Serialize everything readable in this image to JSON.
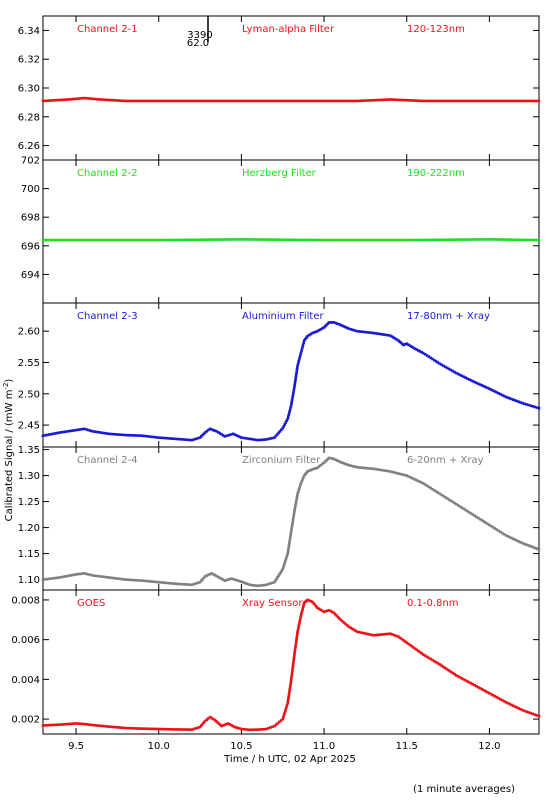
{
  "figure": {
    "ylabel": "Calibrated Signal / (mW m",
    "ylabel_sup": "-2",
    "ylabel_tail": ")",
    "xlabel": "Time / h UTC, 02 Apr 2025",
    "footnote": "(1 minute averages)",
    "marker_labels": [
      "3390",
      "62.0"
    ]
  },
  "chart_data": [
    {
      "type": "scatter",
      "channel": "Channel 2-1",
      "filter": "Lyman-alpha Filter",
      "band": "120-123nm",
      "color": "#e8141a",
      "ylim": [
        6.25,
        6.35
      ],
      "yticks": [
        6.26,
        6.28,
        6.3,
        6.32,
        6.34
      ],
      "ytick_labels": [
        "6.26",
        "6.28",
        "6.30",
        "6.32",
        "6.34"
      ],
      "x": [
        9.3,
        9.45,
        9.55,
        9.65,
        9.8,
        10.0,
        10.5,
        11.0,
        11.2,
        11.4,
        11.6,
        12.0,
        12.3
      ],
      "y": [
        6.291,
        6.292,
        6.293,
        6.292,
        6.291,
        6.291,
        6.291,
        6.291,
        6.291,
        6.292,
        6.291,
        6.291,
        6.291
      ]
    },
    {
      "type": "scatter",
      "channel": "Channel 2-2",
      "filter": "Herzberg Filter",
      "band": "190-222nm",
      "color": "#22dd22",
      "ylim": [
        692.0,
        702.0
      ],
      "yticks": [
        694,
        696,
        698,
        700,
        702
      ],
      "ytick_labels": [
        "694",
        "696",
        "698",
        "700",
        "702"
      ],
      "x": [
        9.3,
        9.6,
        10.0,
        10.5,
        11.0,
        11.5,
        12.0,
        12.3
      ],
      "y": [
        696.4,
        696.4,
        696.4,
        696.45,
        696.4,
        696.4,
        696.45,
        696.4
      ]
    },
    {
      "type": "scatter",
      "channel": "Channel 2-3",
      "filter": "Aluminium Filter",
      "band": "17-80nm + Xray",
      "color": "#1a1ad4",
      "ylim": [
        2.415,
        2.645
      ],
      "yticks": [
        2.45,
        2.5,
        2.55,
        2.6
      ],
      "ytick_labels": [
        "2.45",
        "2.50",
        "2.55",
        "2.60"
      ],
      "x": [
        9.3,
        9.4,
        9.5,
        9.55,
        9.6,
        9.7,
        9.8,
        9.9,
        10.0,
        10.1,
        10.2,
        10.25,
        10.28,
        10.31,
        10.35,
        10.4,
        10.45,
        10.5,
        10.55,
        10.6,
        10.65,
        10.7,
        10.75,
        10.78,
        10.8,
        10.82,
        10.84,
        10.86,
        10.88,
        10.9,
        10.93,
        10.96,
        11.0,
        11.03,
        11.06,
        11.1,
        11.15,
        11.2,
        11.3,
        11.4,
        11.45,
        11.48,
        11.5,
        11.55,
        11.6,
        11.7,
        11.8,
        11.9,
        12.0,
        12.1,
        12.2,
        12.3
      ],
      "y": [
        2.433,
        2.438,
        2.442,
        2.444,
        2.44,
        2.436,
        2.434,
        2.433,
        2.43,
        2.428,
        2.426,
        2.43,
        2.438,
        2.444,
        2.44,
        2.432,
        2.436,
        2.43,
        2.428,
        2.426,
        2.427,
        2.43,
        2.445,
        2.46,
        2.48,
        2.51,
        2.545,
        2.565,
        2.585,
        2.592,
        2.597,
        2.6,
        2.606,
        2.614,
        2.614,
        2.61,
        2.604,
        2.6,
        2.597,
        2.593,
        2.585,
        2.578,
        2.58,
        2.572,
        2.565,
        2.548,
        2.533,
        2.52,
        2.508,
        2.495,
        2.485,
        2.477
      ]
    },
    {
      "type": "scatter",
      "channel": "Channel 2-4",
      "filter": "Zirconium Filter",
      "band": "6-20nm + Xray",
      "color": "#808080",
      "ylim": [
        1.08,
        1.355
      ],
      "yticks": [
        1.1,
        1.15,
        1.2,
        1.25,
        1.3,
        1.35
      ],
      "ytick_labels": [
        "1.10",
        "1.15",
        "1.20",
        "1.25",
        "1.30",
        "1.35"
      ],
      "x": [
        9.3,
        9.4,
        9.5,
        9.55,
        9.6,
        9.7,
        9.8,
        9.9,
        10.0,
        10.1,
        10.2,
        10.25,
        10.28,
        10.32,
        10.36,
        10.4,
        10.44,
        10.5,
        10.55,
        10.6,
        10.65,
        10.7,
        10.75,
        10.78,
        10.8,
        10.82,
        10.84,
        10.86,
        10.88,
        10.9,
        10.93,
        10.96,
        11.0,
        11.03,
        11.06,
        11.1,
        11.15,
        11.2,
        11.3,
        11.4,
        11.5,
        11.6,
        11.7,
        11.8,
        11.9,
        12.0,
        12.1,
        12.2,
        12.3
      ],
      "y": [
        1.1,
        1.104,
        1.11,
        1.112,
        1.108,
        1.104,
        1.1,
        1.098,
        1.095,
        1.092,
        1.09,
        1.095,
        1.106,
        1.112,
        1.105,
        1.098,
        1.102,
        1.096,
        1.09,
        1.088,
        1.09,
        1.095,
        1.12,
        1.15,
        1.19,
        1.23,
        1.265,
        1.285,
        1.3,
        1.308,
        1.312,
        1.315,
        1.325,
        1.334,
        1.332,
        1.326,
        1.32,
        1.316,
        1.313,
        1.308,
        1.3,
        1.285,
        1.265,
        1.245,
        1.225,
        1.205,
        1.185,
        1.17,
        1.158
      ]
    },
    {
      "type": "scatter",
      "channel": "GOES",
      "filter": "Xray Sensor",
      "band": "0.1-0.8nm",
      "color": "#e8141a",
      "ylim": [
        0.00125,
        0.0085
      ],
      "yticks": [
        0.002,
        0.004,
        0.006,
        0.008
      ],
      "ytick_labels": [
        "0.002",
        "0.004",
        "0.006",
        "0.008"
      ],
      "x": [
        9.3,
        9.4,
        9.5,
        9.55,
        9.6,
        9.7,
        9.8,
        9.9,
        10.0,
        10.1,
        10.2,
        10.25,
        10.28,
        10.31,
        10.34,
        10.38,
        10.42,
        10.46,
        10.5,
        10.55,
        10.6,
        10.65,
        10.7,
        10.75,
        10.78,
        10.8,
        10.82,
        10.84,
        10.86,
        10.88,
        10.9,
        10.93,
        10.96,
        11.0,
        11.03,
        11.06,
        11.1,
        11.15,
        11.2,
        11.3,
        11.4,
        11.45,
        11.5,
        11.6,
        11.7,
        11.8,
        11.9,
        12.0,
        12.1,
        12.2,
        12.3
      ],
      "y": [
        0.00168,
        0.00172,
        0.00178,
        0.00175,
        0.0017,
        0.00162,
        0.00155,
        0.00152,
        0.0015,
        0.00148,
        0.00147,
        0.0016,
        0.0019,
        0.0021,
        0.00195,
        0.00165,
        0.00178,
        0.0016,
        0.0015,
        0.00146,
        0.00147,
        0.0015,
        0.00165,
        0.002,
        0.0028,
        0.0039,
        0.0052,
        0.0064,
        0.0072,
        0.00785,
        0.008,
        0.0079,
        0.0076,
        0.0074,
        0.00748,
        0.00735,
        0.007,
        0.00665,
        0.0064,
        0.00622,
        0.0063,
        0.00615,
        0.00585,
        0.00525,
        0.00475,
        0.0042,
        0.00375,
        0.0033,
        0.00285,
        0.00245,
        0.00215
      ]
    }
  ],
  "xaxis": {
    "xlim": [
      9.3,
      12.3
    ],
    "ticks": [
      9.5,
      10.0,
      10.5,
      11.0,
      11.5,
      12.0
    ],
    "tick_labels": [
      "9.5",
      "10.0",
      "10.5",
      "11.0",
      "11.5",
      "12.0"
    ]
  }
}
